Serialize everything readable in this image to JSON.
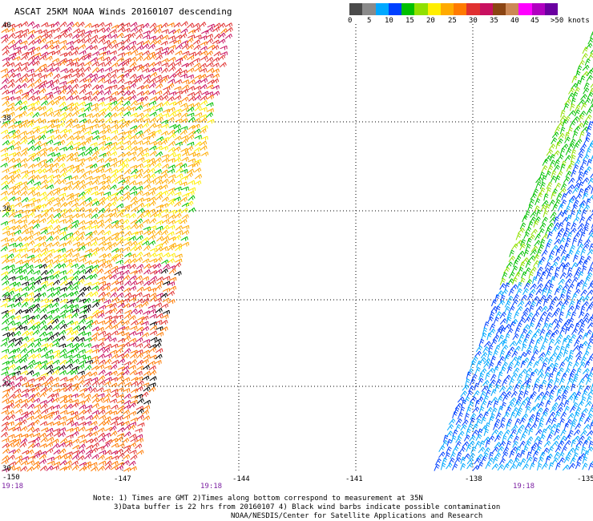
{
  "title": "ASCAT 25KM NOAA Winds 20160107 descending",
  "colorbar": {
    "colors": [
      "#4a4a4a",
      "#8a8a8a",
      "#00a8ff",
      "#0040ff",
      "#00c000",
      "#90e000",
      "#ffee00",
      "#ffaa00",
      "#ff7a00",
      "#e03030",
      "#c81060",
      "#8b4513",
      "#cc8855",
      "#ff00ff",
      "#b000c0",
      "#6a00a0"
    ],
    "labels": [
      "0",
      "5",
      "10",
      "15",
      "20",
      "25",
      "30",
      "35",
      "40",
      "45",
      ">50 knots"
    ]
  },
  "map": {
    "lat_labels": [
      "40",
      "38",
      "36",
      "34",
      "32",
      "30"
    ],
    "lon_labels": [
      "-150",
      "-147",
      "-144",
      "-141",
      "-138",
      "-135"
    ],
    "time_labels": [
      "19:18",
      "19:18",
      "19:18"
    ]
  },
  "footer": {
    "line1": "Note: 1) Times are GMT 2)Times along bottom correspond to measurement at 35N",
    "line2": "3)Data buffer is 22 hrs from 20160107 4) Black wind barbs indicate possible contamination",
    "line3": "NOAA/NESDIS/Center for Satellite Applications and Research"
  }
}
